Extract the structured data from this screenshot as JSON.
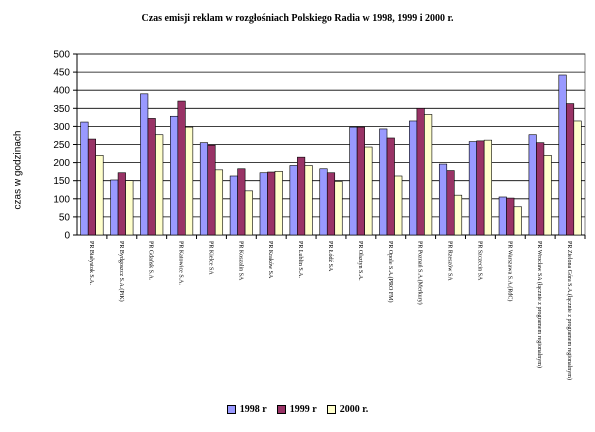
{
  "chart_data": {
    "type": "bar",
    "title": "Czas emisji reklam w rozgłośniach Polskiego Radia w 1998, 1999 i 2000 r.",
    "xlabel": "",
    "ylabel": "czas w godzinach",
    "ylim": [
      0,
      500
    ],
    "yticks": [
      0,
      50,
      100,
      150,
      200,
      250,
      300,
      350,
      400,
      450,
      500
    ],
    "grid": true,
    "legend_position": "bottom",
    "categories": [
      "PR Białystok S.A.",
      "PR Bydgoszcz S.A.(PiK)",
      "PR Gdańsk S.A.",
      "PR Katowice S.A.",
      "PR Kielce SA",
      "PR Koszalin SA",
      "PR Kraków SA",
      "PR Lublin S.A.",
      "PR Łódź SA",
      "PR Olsztyn S.A.",
      "PR Opole S.A.(PRO FM)",
      "PR Poznań S.A.(Merkury)",
      "PR Rzeszów SA",
      "PR Szczecin SA",
      "PR Warszawa S.A.(RdC)",
      "PR Wrocław SA (łącznie z programem regionalnym)",
      "PR Zielona Góra S.A.(łącznie z programem regionalnym)"
    ],
    "series": [
      {
        "name": "1998 r",
        "color": "#9999ff",
        "values": [
          312,
          152,
          390,
          328,
          255,
          163,
          172,
          192,
          183,
          298,
          293,
          315,
          196,
          258,
          105,
          277,
          442
        ]
      },
      {
        "name": "1999 r",
        "color": "#993366",
        "values": [
          265,
          172,
          322,
          370,
          248,
          183,
          174,
          215,
          172,
          298,
          268,
          350,
          178,
          260,
          102,
          255,
          363
        ]
      },
      {
        "name": "2000 r.",
        "color": "#ffffcc",
        "values": [
          220,
          150,
          277,
          298,
          180,
          122,
          176,
          192,
          148,
          243,
          163,
          333,
          110,
          262,
          78,
          220,
          315
        ]
      }
    ]
  }
}
